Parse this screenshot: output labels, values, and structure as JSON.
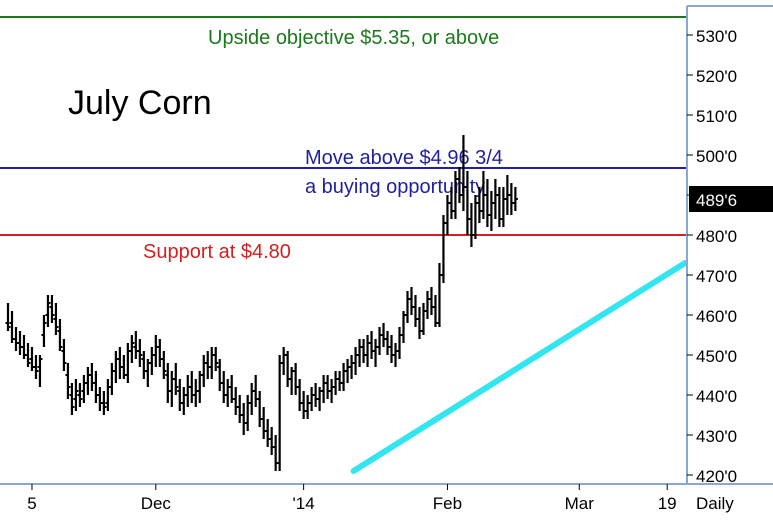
{
  "chart_data": {
    "type": "ohlc",
    "title": "July Corn",
    "timeframe_label": "Daily",
    "last_price_label": "489'6",
    "ylim": [
      420,
      535
    ],
    "y_ticks": [
      {
        "value": 530,
        "label": "530'0"
      },
      {
        "value": 520,
        "label": "520'0"
      },
      {
        "value": 510,
        "label": "510'0"
      },
      {
        "value": 500,
        "label": "500'0"
      },
      {
        "value": 490,
        "label": "490'0"
      },
      {
        "value": 480,
        "label": "480'0"
      },
      {
        "value": 470,
        "label": "470'0"
      },
      {
        "value": 460,
        "label": "460'0"
      },
      {
        "value": 450,
        "label": "450'0"
      },
      {
        "value": 440,
        "label": "440'0"
      },
      {
        "value": 430,
        "label": "430'0"
      },
      {
        "value": 420,
        "label": "420'0"
      }
    ],
    "x_ticks": [
      {
        "label": "5",
        "bar": 6
      },
      {
        "label": "Dec",
        "bar": 37
      },
      {
        "label": "'14",
        "bar": 74
      },
      {
        "label": "Feb",
        "bar": 110
      },
      {
        "label": "Mar",
        "bar": 143
      },
      {
        "label": "19",
        "bar": 165
      }
    ],
    "horizontal_lines": [
      {
        "name": "upside-objective-line",
        "value": 535,
        "color": "#1a7a1a",
        "label_lines": [
          "Upside objective $5.35, or above"
        ],
        "label_color": "#1a7a1a"
      },
      {
        "name": "resistance-line",
        "value": 496.75,
        "color": "#1f1fa0",
        "label_lines": [
          "Move above $4.96 3/4",
          "a buying opportunity"
        ],
        "label_color": "#1f1fa0"
      },
      {
        "name": "support-line",
        "value": 480,
        "color": "#d42020",
        "label_lines": [
          "Support at $4.80"
        ],
        "label_color": "#d42020"
      }
    ],
    "trend_line": {
      "color": "#33e5f0",
      "start": {
        "bar": 86,
        "value": 421
      },
      "end": {
        "bar": 170,
        "value": 473
      }
    },
    "bars": [
      [
        458,
        463,
        456,
        457
      ],
      [
        458,
        461,
        453,
        454
      ],
      [
        454,
        457,
        451,
        453
      ],
      [
        453,
        456,
        450,
        452
      ],
      [
        452,
        455,
        449,
        450
      ],
      [
        450,
        453,
        447,
        448
      ],
      [
        449,
        452,
        446,
        447
      ],
      [
        447,
        450,
        444,
        446
      ],
      [
        447,
        450,
        442,
        449
      ],
      [
        455,
        460,
        452,
        458
      ],
      [
        460,
        465,
        457,
        463
      ],
      [
        462,
        465,
        458,
        460
      ],
      [
        459,
        463,
        455,
        457
      ],
      [
        456,
        459,
        451,
        452
      ],
      [
        451,
        454,
        446,
        448
      ],
      [
        445,
        448,
        439,
        442
      ],
      [
        440,
        443,
        435,
        437
      ],
      [
        439,
        444,
        436,
        441
      ],
      [
        440,
        443,
        437,
        439
      ],
      [
        441,
        445,
        438,
        443
      ],
      [
        443,
        447,
        440,
        445
      ],
      [
        445,
        448,
        441,
        443
      ],
      [
        443,
        446,
        438,
        440
      ],
      [
        440,
        442,
        436,
        438
      ],
      [
        438,
        441,
        435,
        437
      ],
      [
        438,
        444,
        436,
        442
      ],
      [
        442,
        448,
        440,
        446
      ],
      [
        446,
        451,
        443,
        449
      ],
      [
        449,
        452,
        444,
        447
      ],
      [
        447,
        450,
        444,
        445
      ],
      [
        445,
        453,
        443,
        451
      ],
      [
        451,
        455,
        448,
        453
      ],
      [
        452,
        456,
        449,
        451
      ],
      [
        451,
        454,
        447,
        450
      ],
      [
        449,
        451,
        444,
        446
      ],
      [
        446,
        449,
        442,
        448
      ],
      [
        448,
        452,
        445,
        450
      ],
      [
        450,
        455,
        447,
        452
      ],
      [
        452,
        454,
        447,
        449
      ],
      [
        449,
        451,
        444,
        446
      ],
      [
        445,
        448,
        438,
        441
      ],
      [
        441,
        446,
        437,
        444
      ],
      [
        444,
        448,
        440,
        442
      ],
      [
        441,
        444,
        436,
        438
      ],
      [
        438,
        442,
        435,
        440
      ],
      [
        440,
        445,
        437,
        442
      ],
      [
        442,
        446,
        438,
        440
      ],
      [
        440,
        444,
        437,
        441
      ],
      [
        441,
        446,
        438,
        445
      ],
      [
        445,
        450,
        442,
        448
      ],
      [
        448,
        451,
        444,
        447
      ],
      [
        447,
        452,
        444,
        450
      ],
      [
        450,
        452,
        446,
        448
      ],
      [
        447,
        449,
        441,
        443
      ],
      [
        443,
        446,
        438,
        440
      ],
      [
        440,
        444,
        437,
        442
      ],
      [
        442,
        445,
        438,
        439
      ],
      [
        439,
        442,
        435,
        437
      ],
      [
        437,
        440,
        433,
        435
      ],
      [
        435,
        438,
        430,
        433
      ],
      [
        433,
        440,
        431,
        438
      ],
      [
        438,
        443,
        435,
        441
      ],
      [
        441,
        445,
        437,
        439
      ],
      [
        439,
        441,
        432,
        434
      ],
      [
        434,
        437,
        429,
        431
      ],
      [
        431,
        434,
        427,
        429
      ],
      [
        429,
        432,
        425,
        427
      ],
      [
        427,
        430,
        421,
        423
      ],
      [
        423,
        450,
        421,
        448
      ],
      [
        448,
        452,
        445,
        450
      ],
      [
        450,
        451,
        442,
        444
      ],
      [
        444,
        447,
        440,
        446
      ],
      [
        446,
        448,
        440,
        442
      ],
      [
        442,
        444,
        436,
        438
      ],
      [
        438,
        441,
        434,
        436
      ],
      [
        436,
        440,
        434,
        438
      ],
      [
        438,
        442,
        436,
        440
      ],
      [
        440,
        443,
        437,
        439
      ],
      [
        439,
        442,
        436,
        441
      ],
      [
        441,
        445,
        438,
        443
      ],
      [
        443,
        445,
        439,
        441
      ],
      [
        441,
        444,
        438,
        442
      ],
      [
        442,
        446,
        440,
        444
      ],
      [
        444,
        446,
        441,
        443
      ],
      [
        443,
        448,
        441,
        446
      ],
      [
        446,
        449,
        443,
        447
      ],
      [
        447,
        450,
        444,
        448
      ],
      [
        448,
        452,
        445,
        450
      ],
      [
        450,
        454,
        447,
        452
      ],
      [
        452,
        454,
        448,
        450
      ],
      [
        450,
        455,
        447,
        453
      ],
      [
        453,
        456,
        449,
        451
      ],
      [
        451,
        454,
        447,
        452
      ],
      [
        452,
        457,
        450,
        455
      ],
      [
        455,
        458,
        452,
        454
      ],
      [
        454,
        456,
        450,
        452
      ],
      [
        452,
        455,
        448,
        450
      ],
      [
        450,
        453,
        447,
        451
      ],
      [
        451,
        457,
        449,
        455
      ],
      [
        455,
        461,
        453,
        460
      ],
      [
        460,
        466,
        458,
        464
      ],
      [
        464,
        467,
        460,
        462
      ],
      [
        462,
        465,
        457,
        459
      ],
      [
        459,
        462,
        454,
        456
      ],
      [
        456,
        463,
        455,
        461
      ],
      [
        461,
        466,
        459,
        464
      ],
      [
        464,
        467,
        460,
        462
      ],
      [
        462,
        465,
        457,
        458
      ],
      [
        458,
        473,
        457,
        470
      ],
      [
        470,
        485,
        468,
        483
      ],
      [
        483,
        490,
        480,
        488
      ],
      [
        488,
        492,
        484,
        486
      ],
      [
        486,
        496,
        484,
        494
      ],
      [
        494,
        497,
        488,
        490
      ],
      [
        490,
        505,
        486,
        492
      ],
      [
        492,
        496,
        480,
        484
      ],
      [
        484,
        488,
        477,
        480
      ],
      [
        480,
        490,
        479,
        488
      ],
      [
        488,
        492,
        483,
        486
      ],
      [
        486,
        496,
        484,
        490
      ],
      [
        490,
        494,
        482,
        485
      ],
      [
        485,
        491,
        481,
        488
      ],
      [
        488,
        494,
        484,
        490
      ],
      [
        490,
        492,
        482,
        484
      ],
      [
        484,
        492,
        482,
        489
      ],
      [
        489,
        495,
        485,
        490
      ],
      [
        490,
        493,
        485,
        488
      ],
      [
        488,
        492,
        486,
        489
      ]
    ]
  }
}
